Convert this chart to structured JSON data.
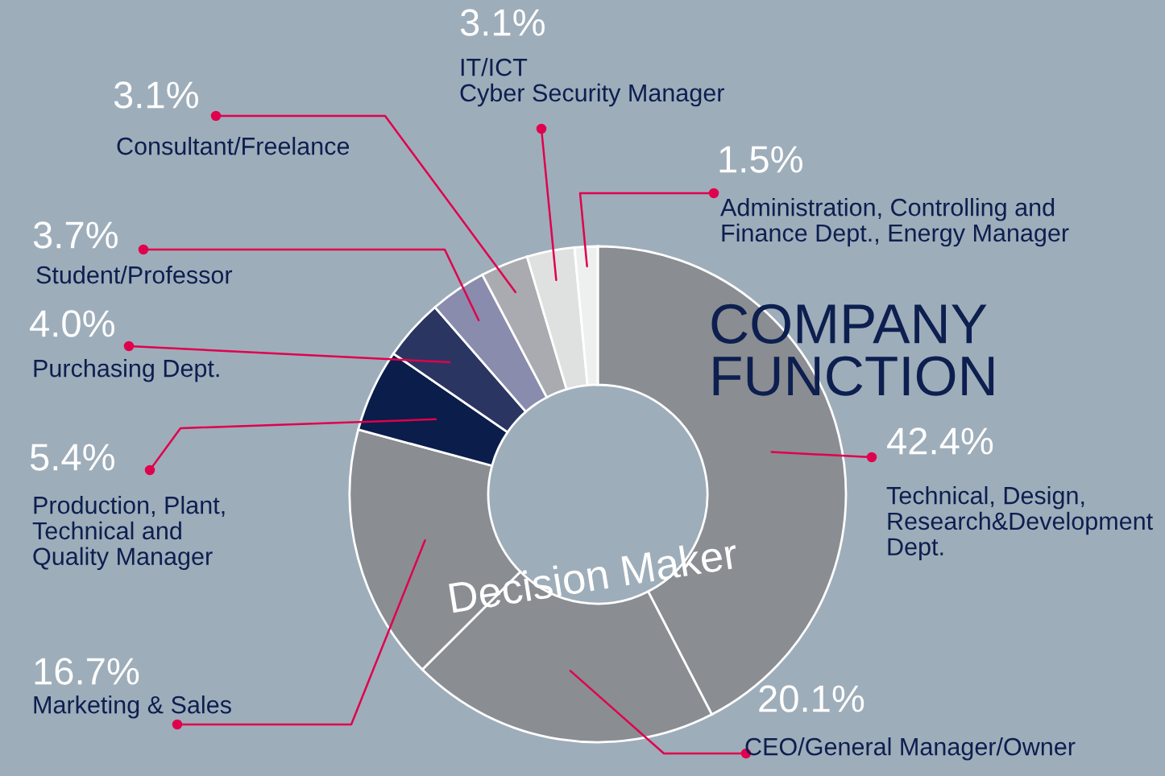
{
  "chart_data": {
    "type": "donut",
    "title": "COMPANY\nFUNCTION",
    "categories": [
      "Technical, Design,\nResearch&Development\nDept.",
      "CEO/General Manager/Owner",
      "Marketing & Sales",
      "Production, Plant,\nTechnical and\nQuality Manager",
      "Purchasing Dept.",
      "Student/Professor",
      "Consultant/Freelance",
      "IT/ICT\nCyber Security Manager",
      "Administration, Controlling and\nFinance Dept., Energy Manager"
    ],
    "values": [
      42.4,
      20.1,
      16.7,
      5.4,
      4.0,
      3.7,
      3.1,
      3.1,
      1.5
    ],
    "value_labels": [
      "42.4%",
      "20.1%",
      "16.7%",
      "5.4%",
      "4.0%",
      "3.7%",
      "3.1%",
      "3.1%",
      "1.5%"
    ],
    "colors": [
      "#8a8d92",
      "#8a8d92",
      "#8a8d92",
      "#0b1d4a",
      "#2b3561",
      "#8a8cad",
      "#aaabb0",
      "#dfe1e1",
      "#eef0f0"
    ],
    "annotations": [
      "Decision Maker"
    ],
    "legend": false
  }
}
